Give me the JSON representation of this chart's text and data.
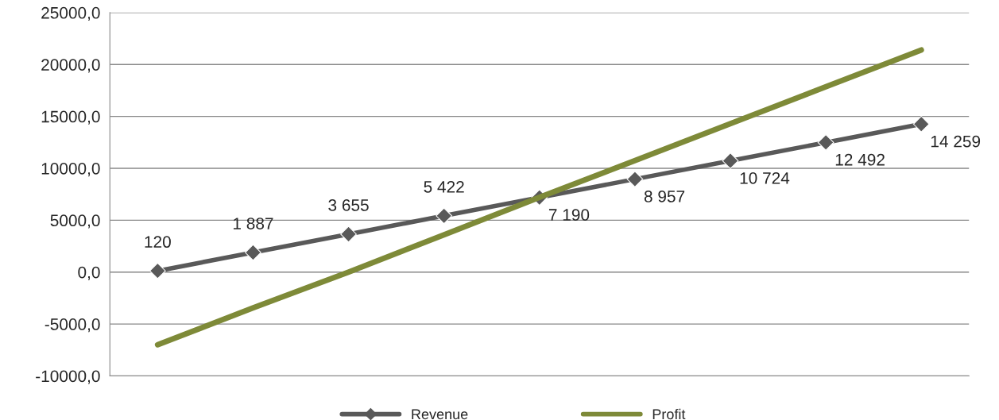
{
  "chart_data": {
    "type": "line",
    "categories": [
      null,
      null,
      null,
      null,
      null,
      null,
      null,
      null,
      null
    ],
    "series": [
      {
        "name": "Revenue",
        "color": "#595959",
        "marker": "diamond",
        "values": [
          120,
          1887,
          3655,
          5422,
          7190,
          8957,
          10724,
          12492,
          14259
        ],
        "value_labels": [
          "120",
          "1 887",
          "3 655",
          "5 422",
          "7 190",
          "8 957",
          "10 724",
          "12 492",
          "14 259"
        ]
      },
      {
        "name": "Profit",
        "color": "#7e8a38",
        "values": [
          -7000,
          -3450,
          0,
          3600,
          7200,
          10750,
          14300,
          17850,
          21400
        ]
      }
    ],
    "ylim": [
      -10000,
      25000
    ],
    "yticks": [
      {
        "value": -10000,
        "label": "-10000,0"
      },
      {
        "value": -5000,
        "label": "-5000,0"
      },
      {
        "value": 0,
        "label": "0,0"
      },
      {
        "value": 5000,
        "label": "5000,0"
      },
      {
        "value": 10000,
        "label": "10000,0"
      },
      {
        "value": 15000,
        "label": "15000,0"
      },
      {
        "value": 20000,
        "label": "20000,0"
      },
      {
        "value": 25000,
        "label": "25000,0"
      }
    ],
    "grid": "y",
    "legend": "bottom"
  }
}
